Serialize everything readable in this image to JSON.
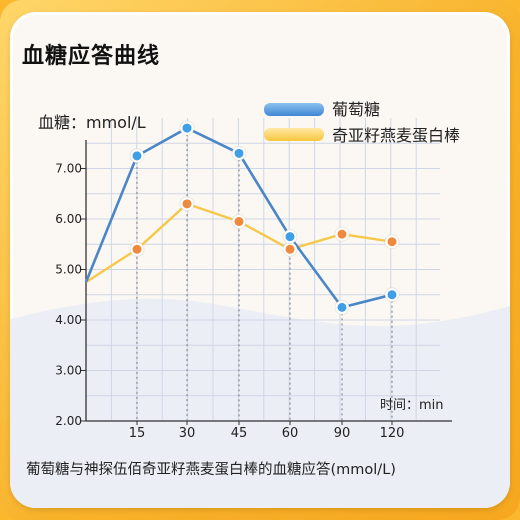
{
  "page_title": "血糖应答曲线",
  "caption": "葡萄糖与神探伍佰奇亚籽燕麦蛋白棒的血糖应答(mmol/L)",
  "colors": {
    "series_1": "#4a86c8",
    "series_2": "#f5c84a",
    "marker_1": "#3e9ee6",
    "marker_2": "#ef8a3c",
    "grid": "#cfd6e6",
    "background_wave": "#e9ecf5"
  },
  "chart_data": {
    "type": "line",
    "title": "血糖应答曲线",
    "ylabel": "血糖：mmol/L",
    "xlabel": "时间：min",
    "x": [
      0,
      15,
      30,
      45,
      60,
      90,
      120
    ],
    "x_tick_labels": [
      "",
      "15",
      "30",
      "45",
      "60",
      "90",
      "120"
    ],
    "y_tick_labels": [
      "2.00",
      "3.00",
      "4.00",
      "5.00",
      "6.00",
      "7.00"
    ],
    "ylim": [
      2.0,
      7.9
    ],
    "grid": true,
    "legend_position": "top-right",
    "series": [
      {
        "name": "葡萄糖",
        "values": [
          4.75,
          7.25,
          7.8,
          7.3,
          5.65,
          4.25,
          4.5
        ]
      },
      {
        "name": "奇亚籽燕麦蛋白棒",
        "values": [
          4.75,
          5.4,
          6.3,
          5.95,
          5.4,
          5.7,
          5.55
        ]
      }
    ]
  }
}
